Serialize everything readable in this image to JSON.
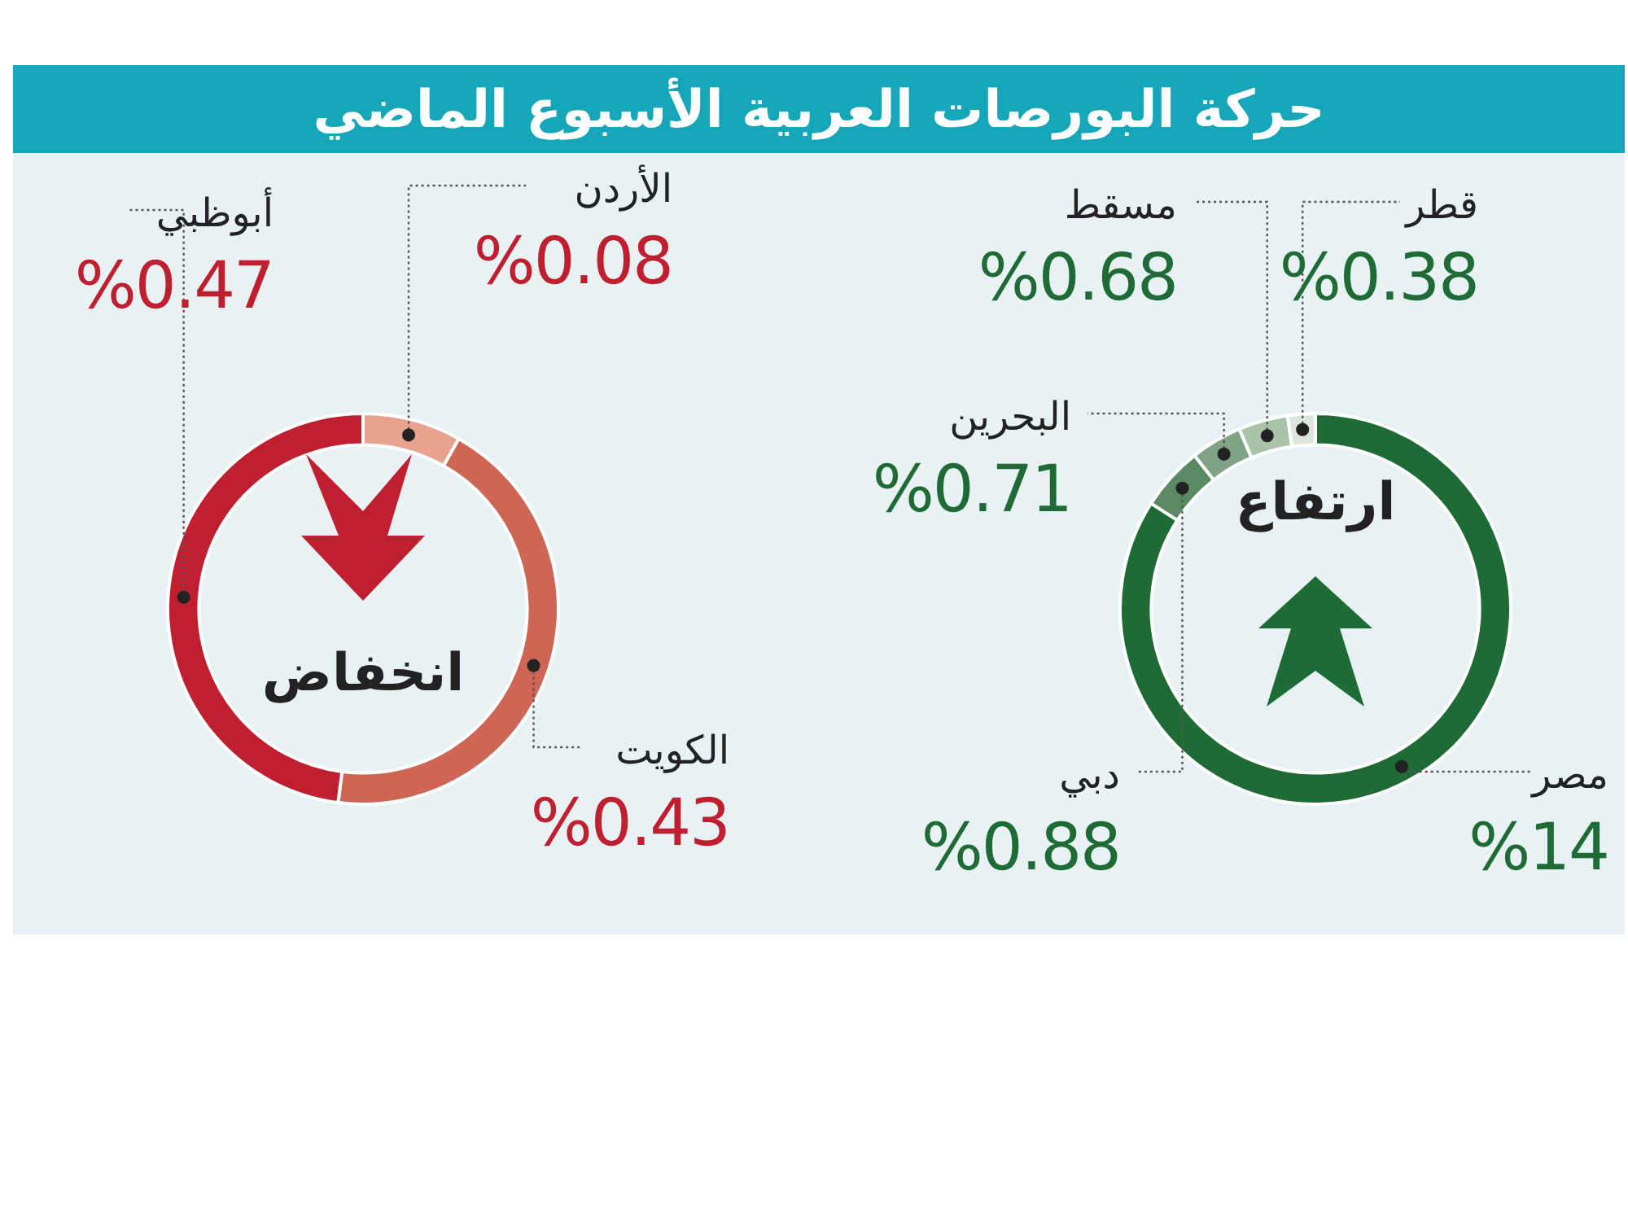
{
  "chart_data": [
    {
      "type": "donut",
      "title": "حركة البورصات العربية الأسبوع الماضي",
      "categories": [
        "الأردن",
        "الكويت",
        "أبوظبي"
      ],
      "values": [
        0.08,
        0.43,
        0.47
      ],
      "colors": [
        "#e8a38f",
        "#cf6555",
        "#c01f2f"
      ],
      "value_labels": [
        "%0.08",
        "%0.43",
        "%0.47"
      ],
      "annotations": [
        "انخفاض"
      ],
      "legend": false
    },
    {
      "type": "donut",
      "categories": [
        "مصر",
        "دبي",
        "البحرين",
        "مسقط",
        "قطر"
      ],
      "values": [
        14,
        0.88,
        0.71,
        0.68,
        0.38
      ],
      "colors": [
        "#1e6b35",
        "#5a8a62",
        "#7fa384",
        "#a9c3a8",
        "#dde6dd"
      ],
      "value_labels": [
        "%14",
        "%0.88",
        "%0.71",
        "%0.68",
        "%0.38"
      ],
      "annotations": [
        "ارتفاع"
      ],
      "legend": false
    }
  ]
}
